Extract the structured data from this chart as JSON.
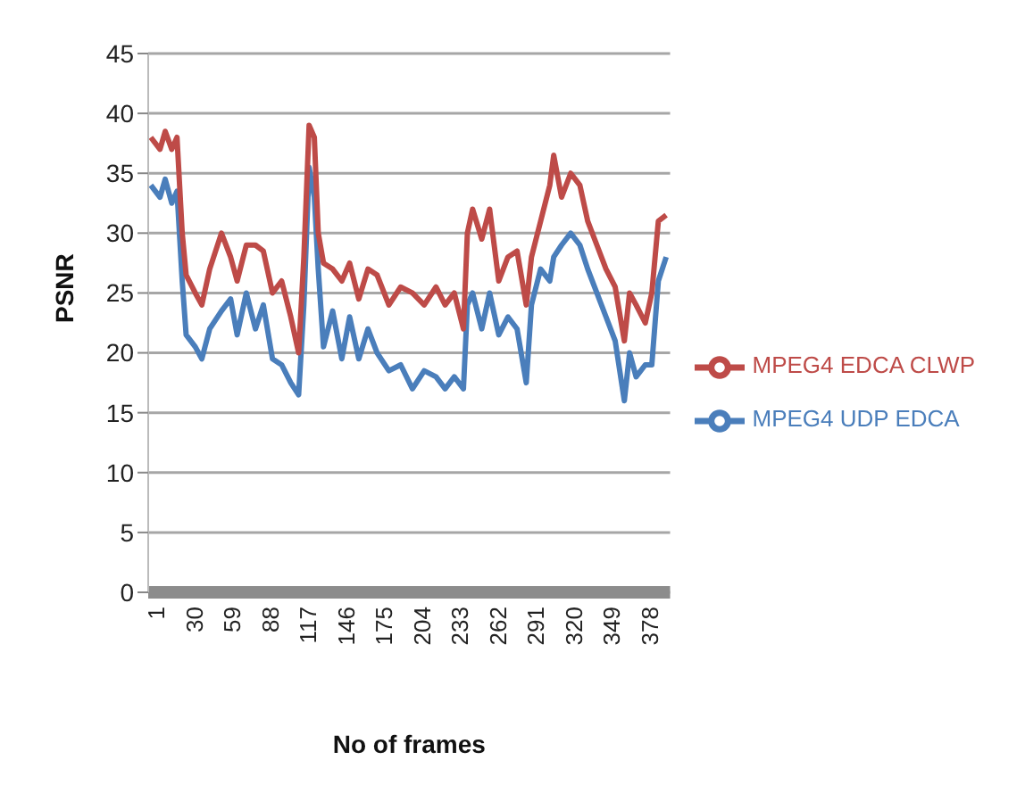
{
  "chart_data": {
    "type": "line",
    "xlabel": "No of frames",
    "ylabel": "PSNR",
    "x": [
      3,
      10,
      14,
      19,
      23,
      27,
      30,
      37,
      42,
      48,
      57,
      64,
      69,
      76,
      83,
      89,
      96,
      103,
      110,
      116,
      120,
      124,
      128,
      131,
      135,
      142,
      149,
      155,
      162,
      169,
      176,
      185,
      194,
      203,
      212,
      221,
      228,
      235,
      242,
      245,
      249,
      256,
      262,
      269,
      276,
      283,
      290,
      294,
      301,
      308,
      311,
      317,
      324,
      331,
      337,
      344,
      351,
      358,
      365,
      369,
      374,
      381,
      386,
      391,
      397
    ],
    "series": [
      {
        "name": "MPEG4 UDP EDCA",
        "color": "#4a7ebb",
        "values": [
          34,
          33,
          34.5,
          32.5,
          33.5,
          26,
          21.5,
          20.5,
          19.5,
          22,
          23.5,
          24.5,
          21.5,
          25,
          22,
          24,
          19.5,
          19,
          17.5,
          16.5,
          24,
          35.5,
          33,
          27,
          20.5,
          23.5,
          19.5,
          23,
          19.5,
          22,
          20,
          18.5,
          19,
          17,
          18.5,
          18,
          17,
          18,
          17,
          24,
          25,
          22,
          25,
          21.5,
          23,
          22,
          17.5,
          24,
          27,
          26,
          28,
          29,
          30,
          29,
          27,
          25,
          23,
          21,
          16,
          20,
          18,
          19,
          19,
          26,
          28
        ]
      },
      {
        "name": "MPEG4 EDCA CLWP",
        "color": "#be4b48",
        "values": [
          38,
          37,
          38.5,
          37,
          38,
          30,
          26.5,
          25,
          24,
          27,
          30,
          28,
          26,
          29,
          29,
          28.5,
          25,
          26,
          23,
          20,
          28,
          39,
          38,
          30,
          27.5,
          27,
          26,
          27.5,
          24.5,
          27,
          26.5,
          24,
          25.5,
          25,
          24,
          25.5,
          24,
          25,
          22,
          30,
          32,
          29.5,
          32,
          26,
          28,
          28.5,
          24,
          28,
          31,
          34,
          36.5,
          33,
          35,
          34,
          31,
          29,
          27,
          25.5,
          21,
          25,
          24,
          22.5,
          25,
          31,
          31.5
        ]
      }
    ],
    "xlim": [
      1,
      400
    ],
    "xticks": [
      1,
      30,
      59,
      88,
      117,
      146,
      175,
      204,
      233,
      262,
      291,
      320,
      349,
      378
    ],
    "ylim": [
      0,
      45
    ],
    "yticks": [
      0,
      5,
      10,
      15,
      20,
      25,
      30,
      35,
      40,
      45
    ],
    "grid": "y",
    "legend": "right",
    "marker": "none",
    "line_style": "solid"
  }
}
